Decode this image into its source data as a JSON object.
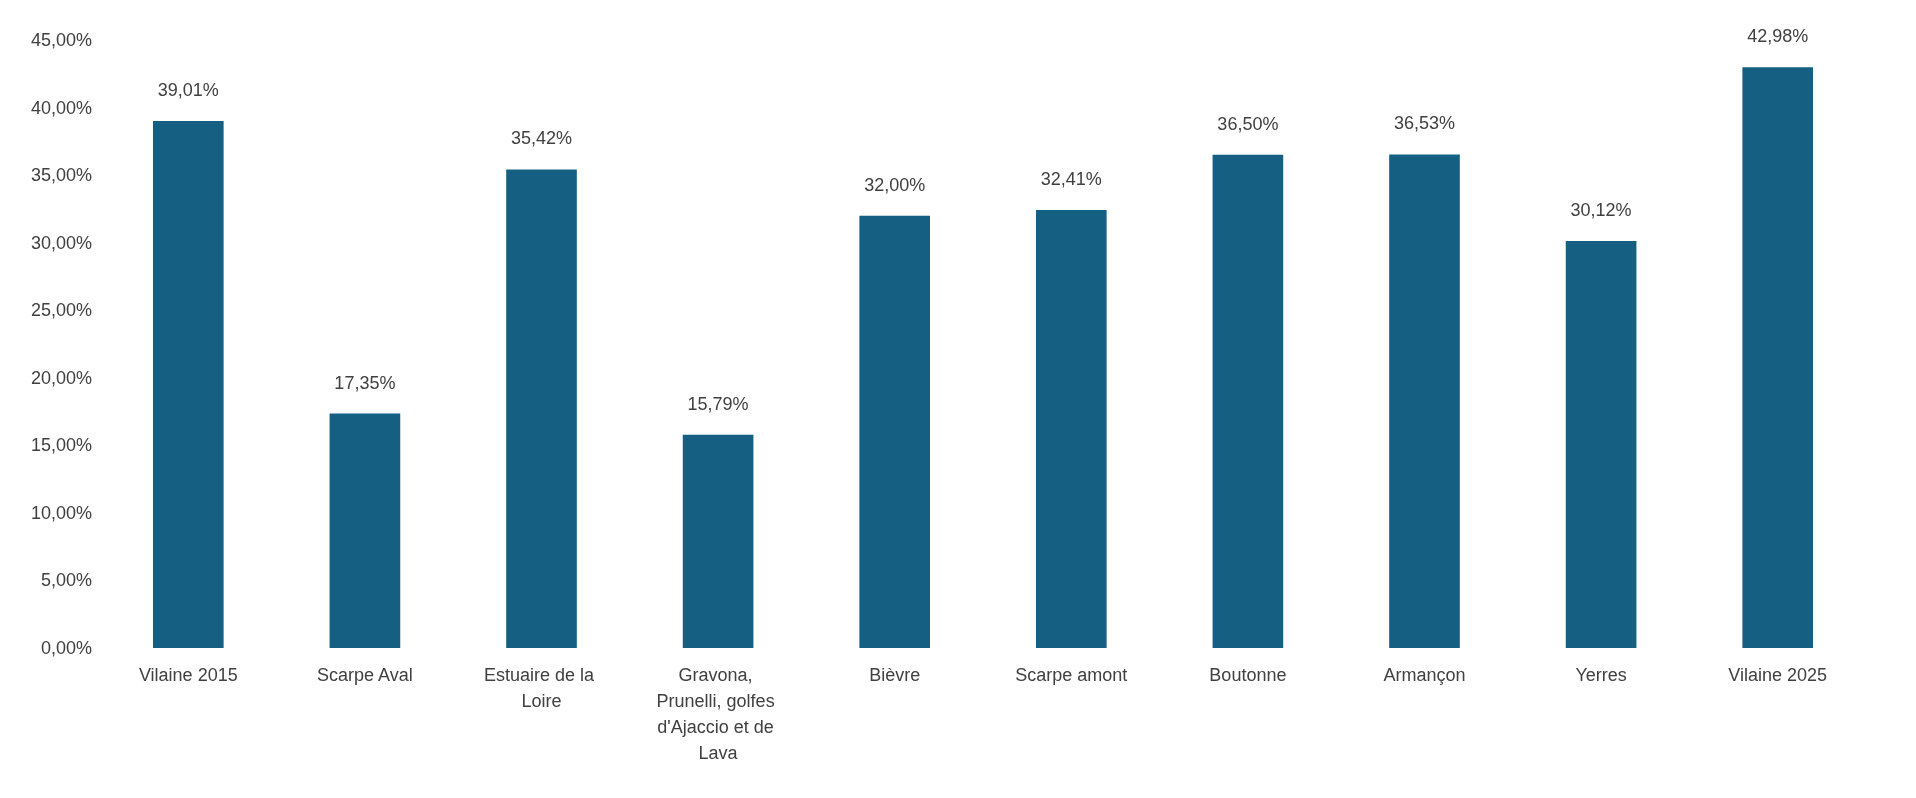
{
  "chart_data": {
    "type": "bar",
    "categories": [
      "Vilaine 2015",
      "Scarpe Aval",
      "Estuaire de la Loire",
      "Gravona, Prunelli, golfes d'Ajaccio et de Lava",
      "Bièvre",
      "Scarpe amont",
      "Boutonne",
      "Armançon",
      "Yerres",
      "Vilaine 2025"
    ],
    "values": [
      39.01,
      17.35,
      35.42,
      15.79,
      32.0,
      32.41,
      36.5,
      36.53,
      30.12,
      42.98
    ],
    "value_labels": [
      "39,01%",
      "17,35%",
      "35,42%",
      "15,79%",
      "32,00%",
      "32,41%",
      "36,50%",
      "36,53%",
      "30,12%",
      "42,98%"
    ],
    "color": "#156082",
    "ylim": [
      0,
      45
    ],
    "yticks": [
      {
        "value": 0,
        "label": "0,00%"
      },
      {
        "value": 5,
        "label": "5,00%"
      },
      {
        "value": 10,
        "label": "10,00%"
      },
      {
        "value": 15,
        "label": "15,00%"
      },
      {
        "value": 20,
        "label": "20,00%"
      },
      {
        "value": 25,
        "label": "25,00%"
      },
      {
        "value": 30,
        "label": "30,00%"
      },
      {
        "value": 35,
        "label": "35,00%"
      },
      {
        "value": 40,
        "label": "40,00%"
      },
      {
        "value": 45,
        "label": "45,00%"
      }
    ],
    "grid": false
  }
}
